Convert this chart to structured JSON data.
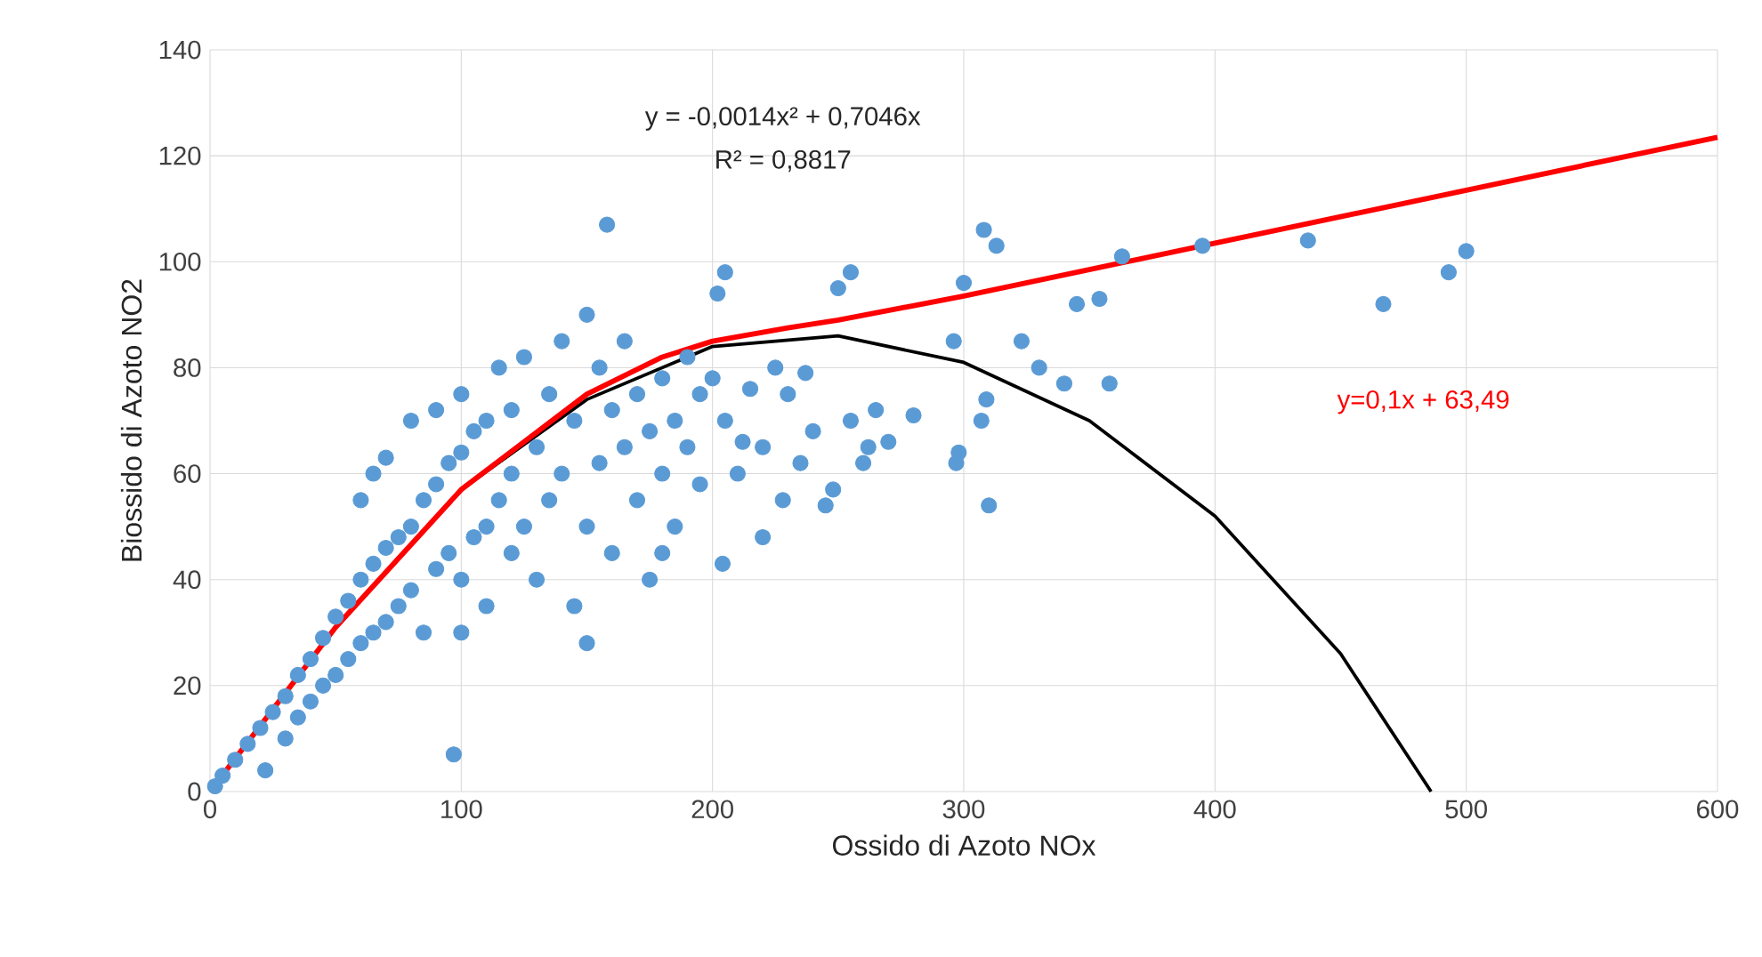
{
  "chart_data": {
    "type": "scatter",
    "xlabel": "Ossido di Azoto NOx",
    "ylabel": "Biossido di Azoto NO2",
    "xlim": [
      0,
      600
    ],
    "ylim": [
      0,
      140
    ],
    "xticks": [
      0,
      100,
      200,
      300,
      400,
      500,
      600
    ],
    "yticks": [
      0,
      20,
      40,
      60,
      80,
      100,
      120,
      140
    ],
    "grid": true,
    "annotations": [
      "y = -0,0014x² + 0,7046x",
      "R² = 0,8817",
      "y=0,1x + 63,49"
    ],
    "series": [
      {
        "marker": "circle",
        "color": "#5b9bd5",
        "x": [
          2,
          5,
          10,
          15,
          20,
          22,
          25,
          30,
          30,
          35,
          35,
          40,
          40,
          45,
          45,
          50,
          50,
          55,
          55,
          60,
          60,
          60,
          65,
          65,
          65,
          70,
          70,
          70,
          75,
          75,
          80,
          80,
          80,
          85,
          85,
          90,
          90,
          90,
          95,
          95,
          100,
          100,
          100,
          100,
          105,
          105,
          110,
          110,
          110,
          115,
          115,
          120,
          120,
          120,
          125,
          125,
          130,
          130,
          135,
          135,
          140,
          140,
          145,
          145,
          150,
          150,
          155,
          155,
          160,
          160,
          165,
          165,
          170,
          170,
          175,
          175,
          180,
          180,
          185,
          185,
          190,
          195,
          195,
          205,
          210,
          215,
          220,
          228,
          235,
          255,
          262,
          270,
          158,
          308,
          313,
          205,
          255,
          363,
          395,
          437,
          500,
          493,
          467,
          300,
          296,
          345,
          354,
          323,
          330,
          340,
          358,
          280,
          298,
          297,
          307,
          309,
          310,
          245,
          248,
          200,
          204,
          97,
          150,
          220,
          180,
          260,
          265,
          240,
          230,
          225,
          237,
          202,
          190,
          212,
          250
        ],
        "values": [
          1,
          3,
          6,
          9,
          12,
          4,
          15,
          18,
          10,
          22,
          14,
          25,
          17,
          29,
          20,
          33,
          22,
          36,
          25,
          40,
          28,
          55,
          43,
          30,
          60,
          46,
          32,
          63,
          48,
          35,
          50,
          38,
          70,
          55,
          30,
          58,
          42,
          72,
          62,
          45,
          64,
          40,
          30,
          75,
          68,
          48,
          70,
          50,
          35,
          55,
          80,
          72,
          45,
          60,
          82,
          50,
          65,
          40,
          75,
          55,
          85,
          60,
          70,
          35,
          90,
          50,
          80,
          62,
          72,
          45,
          65,
          85,
          55,
          75,
          68,
          40,
          60,
          78,
          50,
          70,
          65,
          58,
          75,
          70,
          60,
          76,
          65,
          55,
          62,
          70,
          65,
          66,
          107,
          106,
          103,
          98,
          98,
          101,
          103,
          104,
          102,
          98,
          92,
          96,
          85,
          92,
          93,
          85,
          80,
          77,
          77,
          71,
          64,
          62,
          70,
          74,
          54,
          54,
          57,
          78,
          43,
          7,
          28,
          48,
          45,
          62,
          72,
          68,
          75,
          80,
          79,
          94,
          82,
          66,
          95
        ]
      },
      {
        "type": "line",
        "marker": "none",
        "color": "#000000",
        "x": [
          0,
          50,
          100,
          150,
          200,
          250,
          300,
          350,
          400,
          450,
          486
        ],
        "values": [
          0,
          31,
          57,
          74,
          84,
          86,
          81,
          70,
          52,
          26,
          0
        ]
      },
      {
        "type": "line",
        "marker": "none",
        "color": "#ff0000",
        "x": [
          0,
          50,
          100,
          150,
          180,
          200,
          230,
          250,
          300,
          400,
          500,
          600
        ],
        "values": [
          0,
          31,
          57,
          75,
          82,
          85,
          87.5,
          89,
          93.5,
          103.5,
          113.5,
          123.5
        ]
      }
    ]
  }
}
